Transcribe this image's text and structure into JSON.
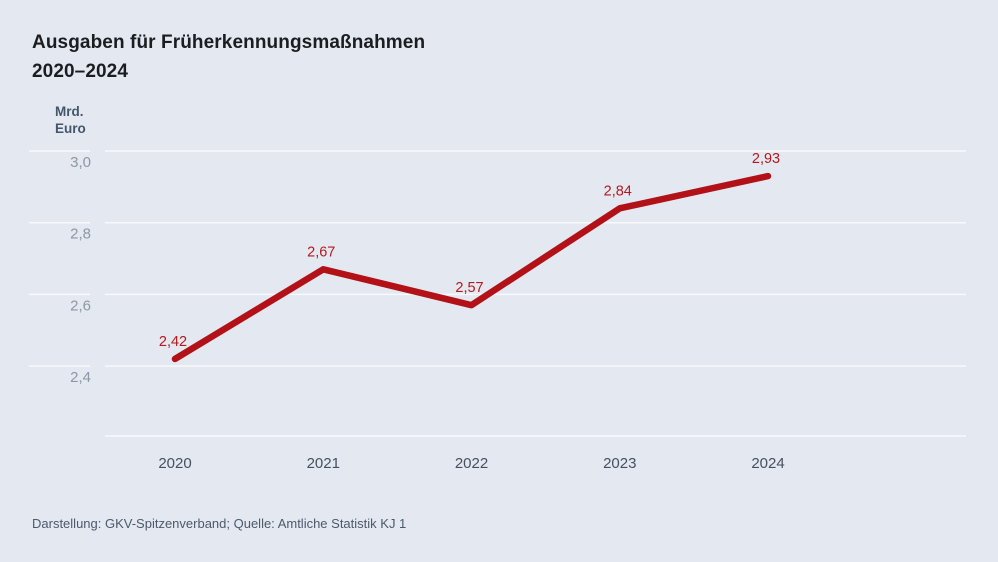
{
  "title": {
    "line1": "Ausgaben für Früherkennungsmaßnahmen",
    "line2": "2020–2024"
  },
  "y_axis_unit": {
    "line1": "Mrd.",
    "line2": "Euro"
  },
  "footer": "Darstellung: GKV-Spitzenverband; Quelle: Amtliche Statistik KJ 1",
  "colors": {
    "background": "#e4e8f0",
    "line": "#b21117",
    "data_label": "#b5191f",
    "grid": "#f7f9fc",
    "title_text": "#1c1d20",
    "ytick_label": "#8e97a5",
    "year_label": "#46505f",
    "unit_label": "#44566b",
    "footer_text": "#4b5a6d"
  },
  "chart_data": {
    "type": "line",
    "title": "Ausgaben für Früherkennungsmaßnahmen 2020–2024",
    "xlabel": "",
    "ylabel": "Mrd. Euro",
    "categories": [
      "2020",
      "2021",
      "2022",
      "2023",
      "2024"
    ],
    "values": [
      2.42,
      2.67,
      2.57,
      2.84,
      2.93
    ],
    "data_labels": [
      "2,42",
      "2,67",
      "2,57",
      "2,84",
      "2,93"
    ],
    "yticks": [
      3.0,
      2.8,
      2.6,
      2.4
    ],
    "ytick_labels": [
      "3,0",
      "2,8",
      "2,6",
      "2,4"
    ],
    "ylim": [
      2.2,
      3.05
    ],
    "grid": true,
    "legend": false
  }
}
